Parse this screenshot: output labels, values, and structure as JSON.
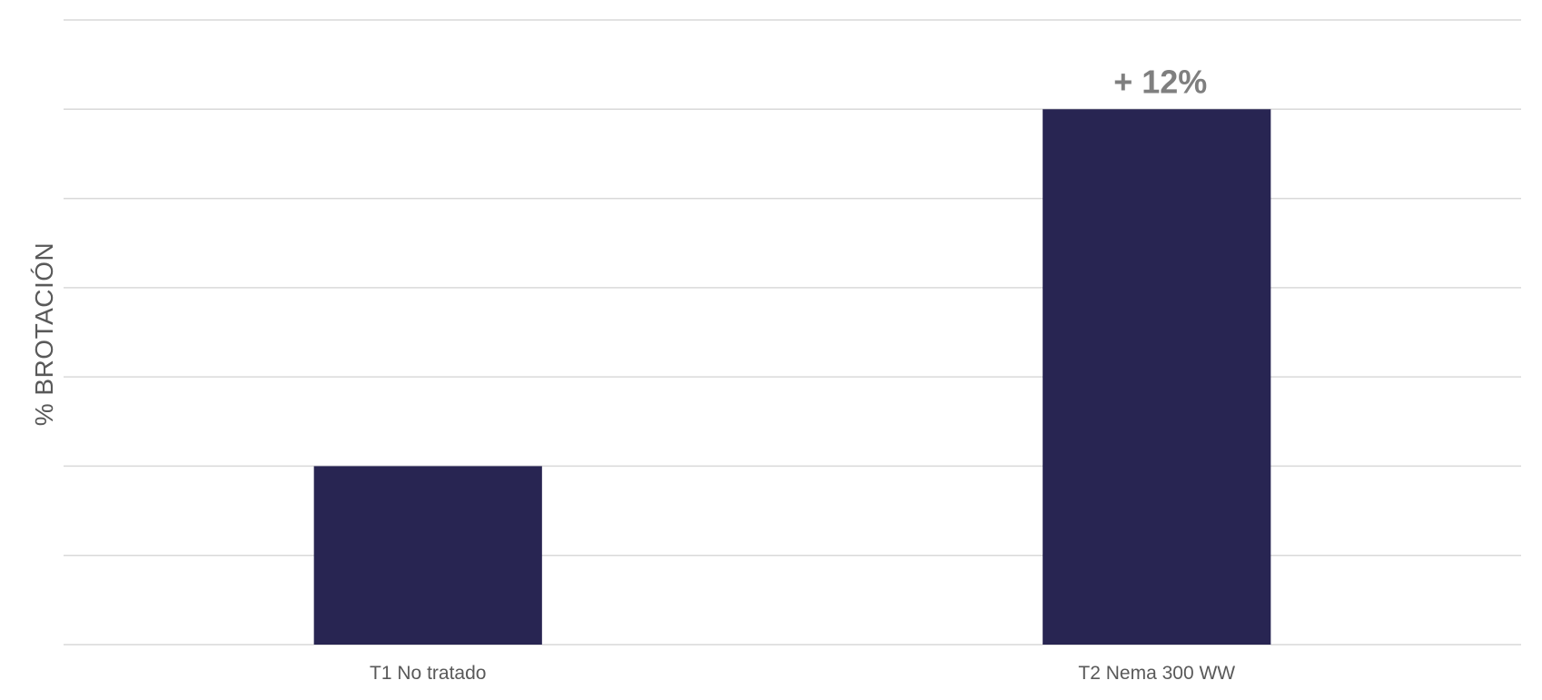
{
  "chart_data": {
    "type": "bar",
    "title": "",
    "xlabel": "",
    "ylabel": "% BROTACIÓN",
    "categories": [
      "T1  No tratado",
      "T2  Nema 300 WW"
    ],
    "values": [
      2,
      6
    ],
    "ylim": [
      0,
      7
    ],
    "gridlines": 7,
    "grid": true,
    "y_tick_labels_visible": false,
    "legend": "none",
    "annotations": [
      {
        "category_index": 1,
        "text": "+ 12%"
      }
    ],
    "colors": {
      "bar": "#282552",
      "grid": "#d9d9d9",
      "text": "#595959",
      "annotation": "#7f7f7f"
    }
  }
}
